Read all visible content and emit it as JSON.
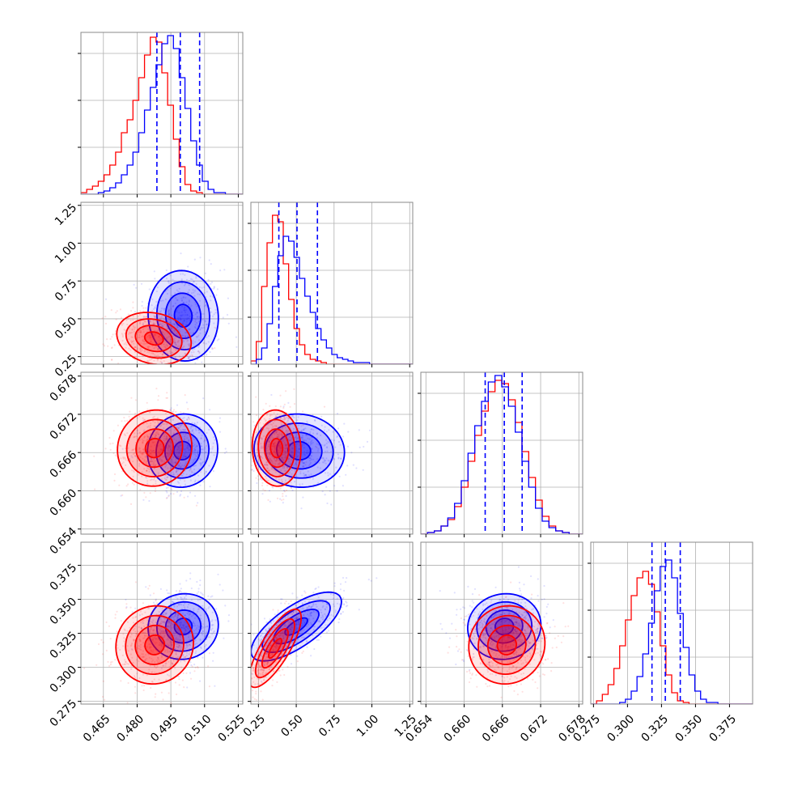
{
  "figure": {
    "type": "corner-plot"
  },
  "colors": {
    "red": "#ff0000",
    "blue": "#0000ff",
    "grid": "#b0b0b0",
    "frame": "#888888"
  },
  "chart_data": {
    "type": "corner",
    "grid": true,
    "params": [
      {
        "range": [
          0.455,
          0.527
        ],
        "ticks": [
          {
            "v": 0.465,
            "label": "0.465"
          },
          {
            "v": 0.48,
            "label": "0.480"
          },
          {
            "v": 0.495,
            "label": "0.495"
          },
          {
            "v": 0.51,
            "label": "0.510"
          },
          {
            "v": 0.525,
            "label": "0.525"
          }
        ]
      },
      {
        "range": [
          0.2,
          1.27
        ],
        "ticks": [
          {
            "v": 0.25,
            "label": "0.25"
          },
          {
            "v": 0.5,
            "label": "0.50"
          },
          {
            "v": 0.75,
            "label": "0.75"
          },
          {
            "v": 1.0,
            "label": "1.00"
          },
          {
            "v": 1.25,
            "label": "1.25"
          }
        ]
      },
      {
        "range": [
          0.6532,
          0.6786
        ],
        "ticks": [
          {
            "v": 0.654,
            "label": "0.654"
          },
          {
            "v": 0.66,
            "label": "0.660"
          },
          {
            "v": 0.666,
            "label": "0.666"
          },
          {
            "v": 0.672,
            "label": "0.672"
          },
          {
            "v": 0.678,
            "label": "0.678"
          }
        ]
      },
      {
        "range": [
          0.273,
          0.392
        ],
        "ticks": [
          {
            "v": 0.275,
            "label": "0.275"
          },
          {
            "v": 0.3,
            "label": "0.300"
          },
          {
            "v": 0.325,
            "label": "0.325"
          },
          {
            "v": 0.35,
            "label": "0.350"
          },
          {
            "v": 0.375,
            "label": "0.375"
          }
        ]
      }
    ],
    "diagonal": [
      {
        "bins": [
          0.455,
          0.527,
          28
        ],
        "red": [
          0.01,
          0.03,
          0.05,
          0.08,
          0.12,
          0.18,
          0.26,
          0.38,
          0.46,
          0.58,
          0.72,
          0.86,
          0.97,
          0.94,
          0.75,
          0.55,
          0.34,
          0.17,
          0.06,
          0.02,
          0.01,
          0,
          0,
          0,
          0,
          0,
          0,
          0
        ],
        "blue": [
          0,
          0,
          0,
          0.01,
          0.02,
          0.04,
          0.07,
          0.12,
          0.18,
          0.26,
          0.38,
          0.52,
          0.66,
          0.8,
          0.93,
          0.98,
          0.9,
          0.72,
          0.53,
          0.33,
          0.18,
          0.08,
          0.03,
          0.01,
          0.01,
          0,
          0,
          0
        ],
        "quantiles_blue": [
          0.4888,
          0.4992,
          0.5078
        ]
      },
      {
        "bins": [
          0.2,
          1.27,
          30
        ],
        "red": [
          0.02,
          0.14,
          0.48,
          0.75,
          0.92,
          0.88,
          0.62,
          0.4,
          0.22,
          0.12,
          0.06,
          0.03,
          0.02,
          0.01,
          0,
          0,
          0,
          0,
          0,
          0,
          0,
          0,
          0,
          0,
          0,
          0,
          0,
          0,
          0,
          0
        ],
        "blue": [
          0,
          0.03,
          0.1,
          0.25,
          0.48,
          0.67,
          0.79,
          0.76,
          0.66,
          0.53,
          0.42,
          0.32,
          0.22,
          0.15,
          0.1,
          0.06,
          0.04,
          0.03,
          0.02,
          0.01,
          0.01,
          0.01,
          0,
          0,
          0,
          0,
          0,
          0,
          0,
          0
        ],
        "quantiles_blue": [
          0.385,
          0.505,
          0.64
        ]
      },
      {
        "bins": [
          0.6532,
          0.6786,
          24
        ],
        "red": [
          0,
          0.01,
          0.02,
          0.05,
          0.09,
          0.17,
          0.29,
          0.45,
          0.61,
          0.76,
          0.88,
          0.95,
          0.93,
          0.83,
          0.69,
          0.51,
          0.35,
          0.21,
          0.11,
          0.05,
          0.02,
          0.01,
          0,
          0
        ],
        "blue": [
          0,
          0.01,
          0.02,
          0.05,
          0.1,
          0.19,
          0.33,
          0.5,
          0.67,
          0.82,
          0.94,
          0.98,
          0.91,
          0.79,
          0.63,
          0.45,
          0.29,
          0.16,
          0.08,
          0.04,
          0.02,
          0.01,
          0,
          0
        ],
        "quantiles_blue": [
          0.6633,
          0.6663,
          0.6691
        ]
      },
      {
        "bins": [
          0.273,
          0.392,
          28
        ],
        "red": [
          0,
          0.02,
          0.06,
          0.12,
          0.22,
          0.36,
          0.52,
          0.67,
          0.78,
          0.82,
          0.74,
          0.57,
          0.36,
          0.18,
          0.07,
          0.02,
          0.01,
          0,
          0,
          0,
          0,
          0,
          0,
          0,
          0,
          0,
          0,
          0
        ],
        "blue": [
          0,
          0,
          0,
          0,
          0,
          0.01,
          0.03,
          0.08,
          0.17,
          0.31,
          0.5,
          0.7,
          0.85,
          0.89,
          0.78,
          0.56,
          0.35,
          0.18,
          0.08,
          0.03,
          0.01,
          0.01,
          0,
          0,
          0,
          0,
          0,
          0
        ],
        "quantiles_blue": [
          0.318,
          0.3278,
          0.3388
        ]
      }
    ],
    "pairs": [
      {
        "row": 1,
        "col": 0,
        "red": {
          "mean": [
            0.4875,
            0.37
          ],
          "sd": [
            0.0072,
            0.075
          ],
          "rho": -0.18
        },
        "blue": {
          "mean": [
            0.5005,
            0.52
          ],
          "sd": [
            0.0068,
            0.13
          ],
          "rho": -0.05
        }
      },
      {
        "row": 2,
        "col": 0,
        "red": {
          "mean": [
            0.4878,
            0.6667
          ],
          "sd": [
            0.0072,
            0.0026
          ],
          "rho": 0.05
        },
        "blue": {
          "mean": [
            0.5002,
            0.6663
          ],
          "sd": [
            0.0068,
            0.0025
          ],
          "rho": 0.05
        }
      },
      {
        "row": 2,
        "col": 1,
        "red": {
          "mean": [
            0.37,
            0.6667
          ],
          "sd": [
            0.07,
            0.0026
          ],
          "rho": -0.05
        },
        "blue": {
          "mean": [
            0.52,
            0.6663
          ],
          "sd": [
            0.13,
            0.0025
          ],
          "rho": -0.05
        }
      },
      {
        "row": 3,
        "col": 0,
        "red": {
          "mean": [
            0.4878,
            0.3165
          ],
          "sd": [
            0.0075,
            0.0125
          ],
          "rho": 0.05
        },
        "blue": {
          "mean": [
            0.5005,
            0.33
          ],
          "sd": [
            0.0068,
            0.0105
          ],
          "rho": 0.05
        }
      },
      {
        "row": 3,
        "col": 1,
        "red": {
          "mean": [
            0.36,
            0.314
          ],
          "sd": [
            0.075,
            0.0125
          ],
          "rho": 0.78
        },
        "blue": {
          "mean": [
            0.5,
            0.33
          ],
          "sd": [
            0.13,
            0.011
          ],
          "rho": 0.72
        }
      },
      {
        "row": 3,
        "col": 2,
        "red": {
          "mean": [
            0.6667,
            0.3165
          ],
          "sd": [
            0.0026,
            0.0125
          ],
          "rho": 0.05
        },
        "blue": {
          "mean": [
            0.6663,
            0.33
          ],
          "sd": [
            0.0025,
            0.0105
          ],
          "rho": 0.05
        }
      }
    ],
    "contour_levels_sigma": [
      0.5,
      1.0,
      1.5,
      2.0
    ]
  }
}
